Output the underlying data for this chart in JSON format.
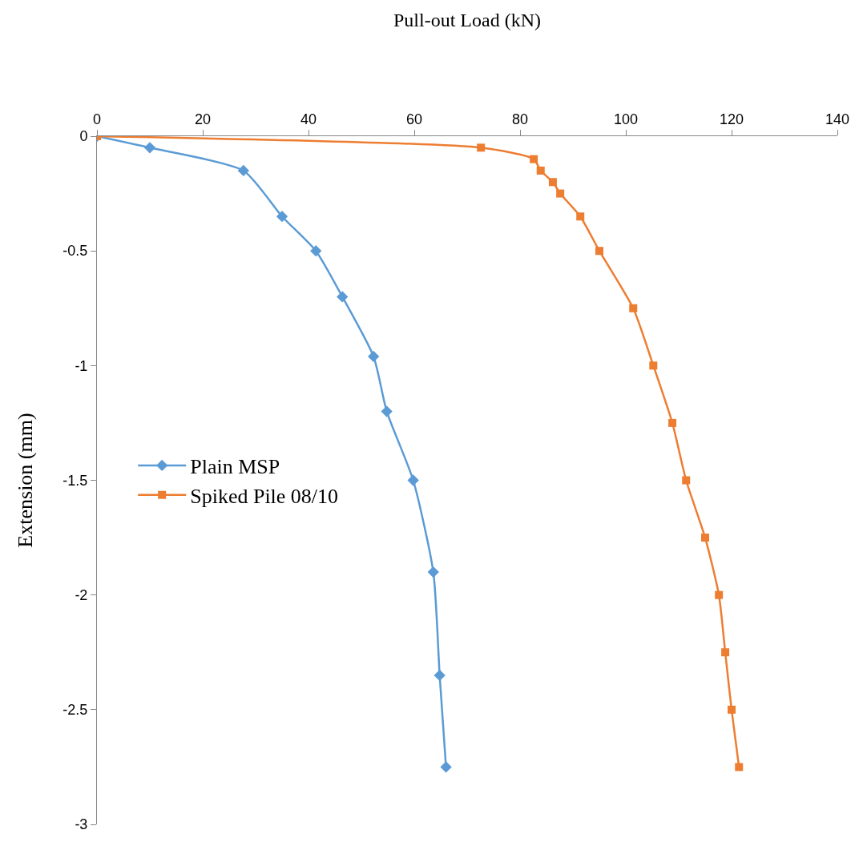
{
  "chart_data": {
    "type": "line",
    "xlabel": "Pull-out Load (kN)",
    "ylabel": "Extension (mm)",
    "xlim": [
      0,
      140
    ],
    "xticks": [
      0,
      20,
      40,
      60,
      80,
      100,
      120,
      140
    ],
    "ylim": [
      -3,
      0
    ],
    "yticks": [
      0,
      -0.5,
      -1,
      -1.5,
      -2,
      -2.5,
      -3
    ],
    "legend": "left",
    "line_style": "solid",
    "series": [
      {
        "name": "Plain MSP",
        "color": "#5b9bd5",
        "marker": "diamond",
        "x": [
          0,
          10,
          27.7,
          35,
          41.4,
          46.4,
          52.3,
          54.8,
          59.8,
          63.6,
          64.8,
          66
        ],
        "values": [
          0,
          -0.05,
          -0.15,
          -0.35,
          -0.5,
          -0.7,
          -0.96,
          -1.2,
          -1.5,
          -1.9,
          -2.35,
          -2.75
        ]
      },
      {
        "name": "Spiked Pile 08/10",
        "color": "#ed7d31",
        "marker": "square",
        "x": [
          0,
          72.6,
          82.6,
          83.9,
          86.2,
          87.6,
          91.4,
          95,
          101.4,
          105.2,
          108.8,
          111.4,
          115,
          117.6,
          118.8,
          120,
          121.4
        ],
        "values": [
          0,
          -0.05,
          -0.1,
          -0.15,
          -0.2,
          -0.25,
          -0.35,
          -0.5,
          -0.75,
          -1.0,
          -1.25,
          -1.5,
          -1.75,
          -2.0,
          -2.25,
          -2.5,
          -2.75
        ]
      }
    ]
  }
}
